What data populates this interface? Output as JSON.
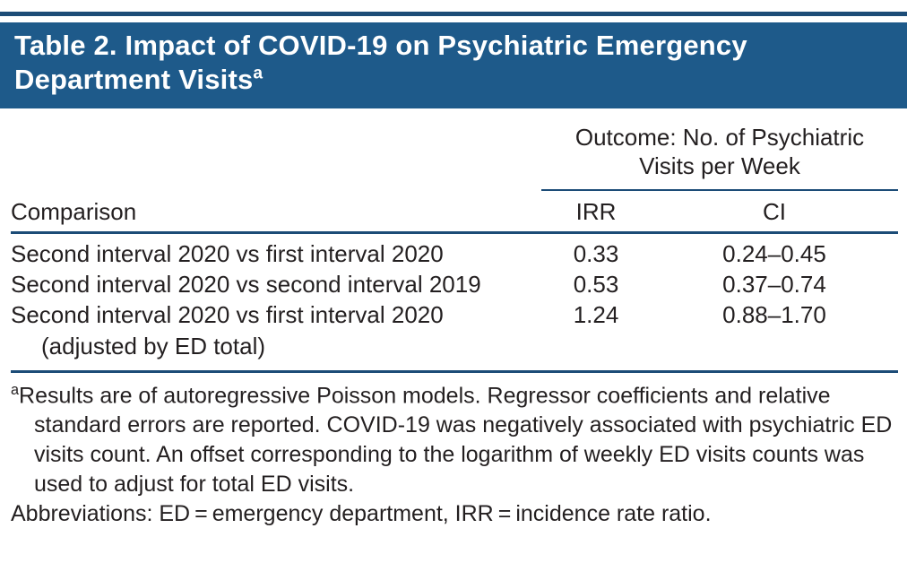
{
  "title": {
    "text": "Table 2. Impact of COVID-19 on Psychiatric Emergency Department Visits",
    "superscript": "a"
  },
  "table": {
    "spanner": {
      "line1": "Outcome: No. of Psychiatric",
      "line2": "Visits per Week"
    },
    "columns": [
      "Comparison",
      "IRR",
      "CI"
    ],
    "rows": [
      {
        "comparison": "Second interval 2020 vs first interval 2020",
        "irr": "0.33",
        "ci": "0.24–0.45"
      },
      {
        "comparison": "Second interval 2020 vs second interval 2019",
        "irr": "0.53",
        "ci": "0.37–0.74"
      },
      {
        "comparison": "Second interval 2020 vs first interval 2020",
        "comparison_cont": "(adjusted by ED total)",
        "irr": "1.24",
        "ci": "0.88–1.70"
      }
    ]
  },
  "footnotes": {
    "marker": "a",
    "a_text": "Results are of autoregressive Poisson models. Regressor coefficients and relative standard errors are reported. COVID-19 was negatively associated with psychiatric ED visits count. An offset corresponding to the logarithm of weekly ED visits counts was used to adjust for total ED visits.",
    "abbreviations": "Abbreviations: ED = emergency department, IRR = incidence rate ratio."
  },
  "colors": {
    "header_bg": "#1e5a8a",
    "rule": "#1c4c77",
    "text": "#231f20"
  }
}
